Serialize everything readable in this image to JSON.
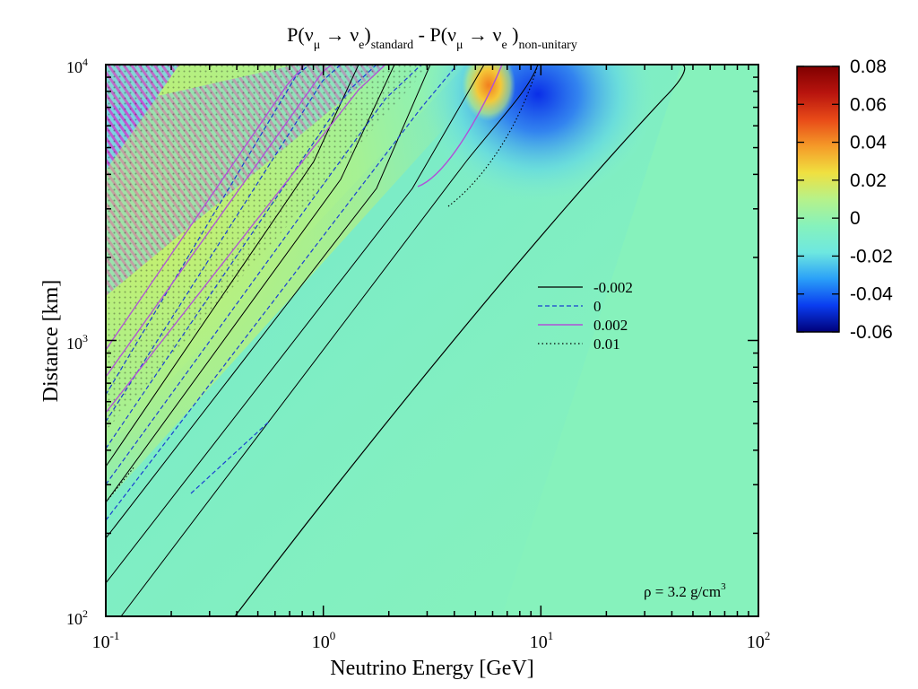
{
  "chart_data": {
    "type": "heatmap",
    "title": {
      "p1": "P(",
      "nu1": "ν",
      "mu": "μ",
      "arrow": " → ",
      "nu2": "ν",
      "e1": "e",
      "close1": ")",
      "standard": "standard",
      "minus": " - P(",
      "nu3": "ν",
      "mu2": "μ",
      "arrow2": " → ",
      "nu4": "ν",
      "e2": "e",
      "close2": " )",
      "nonunitary": "non-unitary"
    },
    "xlabel": "Neutrino Energy [GeV]",
    "ylabel": "Distance [km]",
    "x_scale": "log",
    "y_scale": "log",
    "xlim": [
      0.1,
      100
    ],
    "ylim": [
      100,
      10000
    ],
    "x_ticks": [
      {
        "value": 0.1,
        "base": "10",
        "exp": "-1"
      },
      {
        "value": 1,
        "base": "10",
        "exp": "0"
      },
      {
        "value": 10,
        "base": "10",
        "exp": "1"
      },
      {
        "value": 100,
        "base": "10",
        "exp": "2"
      }
    ],
    "y_ticks": [
      {
        "value": 100,
        "base": "10",
        "exp": "2"
      },
      {
        "value": 1000,
        "base": "10",
        "exp": "3"
      },
      {
        "value": 10000,
        "base": "10",
        "exp": "4"
      }
    ],
    "colorbar": {
      "min": -0.06,
      "max": 0.08,
      "ticks": [
        "0.08",
        "0.06",
        "0.04",
        "0.02",
        "0",
        "-0.02",
        "-0.04",
        "-0.06"
      ],
      "tick_values": [
        0.08,
        0.06,
        0.04,
        0.02,
        0,
        -0.02,
        -0.04,
        -0.06
      ],
      "stops": [
        "#00007a",
        "#0a3df0",
        "#2aa0f8",
        "#6ee8e0",
        "#86f2bc",
        "#b6f28a",
        "#f0e040",
        "#f59a28",
        "#e84a18",
        "#b8140e",
        "#800000"
      ]
    },
    "legend": {
      "placement": "center-right",
      "entries": [
        {
          "label": "-0.002",
          "style": "solid",
          "color": "#000000"
        },
        {
          "label": "0",
          "style": "dashed",
          "color": "#1a3fd0"
        },
        {
          "label": "0.002",
          "style": "solid",
          "color": "#b050d8"
        },
        {
          "label": "0.01",
          "style": "dotted",
          "color": "#000000"
        }
      ]
    },
    "annotation": {
      "text": "ρ = 3.2 g/cm",
      "sup": "3"
    },
    "features": [
      {
        "name": "negative-lobe",
        "energy_GeV": 10,
        "distance_km": 9500,
        "value": -0.06
      },
      {
        "name": "positive-peak",
        "energy_GeV": 5.8,
        "distance_km": 9600,
        "value": 0.05
      },
      {
        "name": "background",
        "value": 0.0
      }
    ]
  }
}
